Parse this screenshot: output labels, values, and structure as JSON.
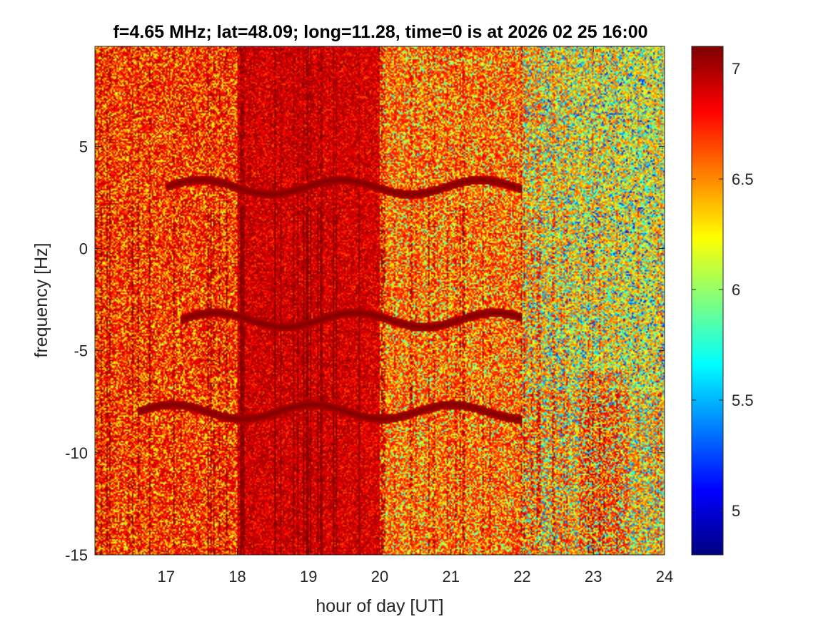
{
  "chart_data": {
    "type": "heatmap",
    "title": "f=4.65 MHz;  lat=48.09; long=11.28, time=0 is at 2026 02 25 16:00",
    "xlabel": "hour of day [UT]",
    "ylabel": "frequency [Hz]",
    "xlim": [
      16,
      24
    ],
    "ylim": [
      -15,
      9.9
    ],
    "x_ticks": [
      17,
      18,
      19,
      20,
      21,
      22,
      23,
      24
    ],
    "y_ticks": [
      -15,
      -10,
      -5,
      0,
      5
    ],
    "colorbar": {
      "colormap": "jet",
      "clim": [
        4.8,
        7.1
      ],
      "ticks": [
        5,
        5.5,
        6,
        6.5,
        7
      ]
    },
    "regions": [
      {
        "x": [
          16.0,
          18.0
        ],
        "level": "mostly 6.9-7.1 with speckle down to ~6.3"
      },
      {
        "x": [
          18.0,
          20.0
        ],
        "level": "saturated ~7.0-7.1"
      },
      {
        "x": [
          20.0,
          22.0
        ],
        "level": "mixed 6.4-7.1"
      },
      {
        "x": [
          22.0,
          24.0
        ],
        "level": "lower, ~6.0-6.8, deeper red streaks near 23"
      }
    ],
    "traces": [
      {
        "center_hz": 3.0,
        "x": [
          17.0,
          22.0
        ]
      },
      {
        "center_hz": -3.5,
        "x": [
          17.2,
          22.0
        ]
      },
      {
        "center_hz": -8.0,
        "x": [
          16.6,
          22.0
        ]
      }
    ]
  }
}
